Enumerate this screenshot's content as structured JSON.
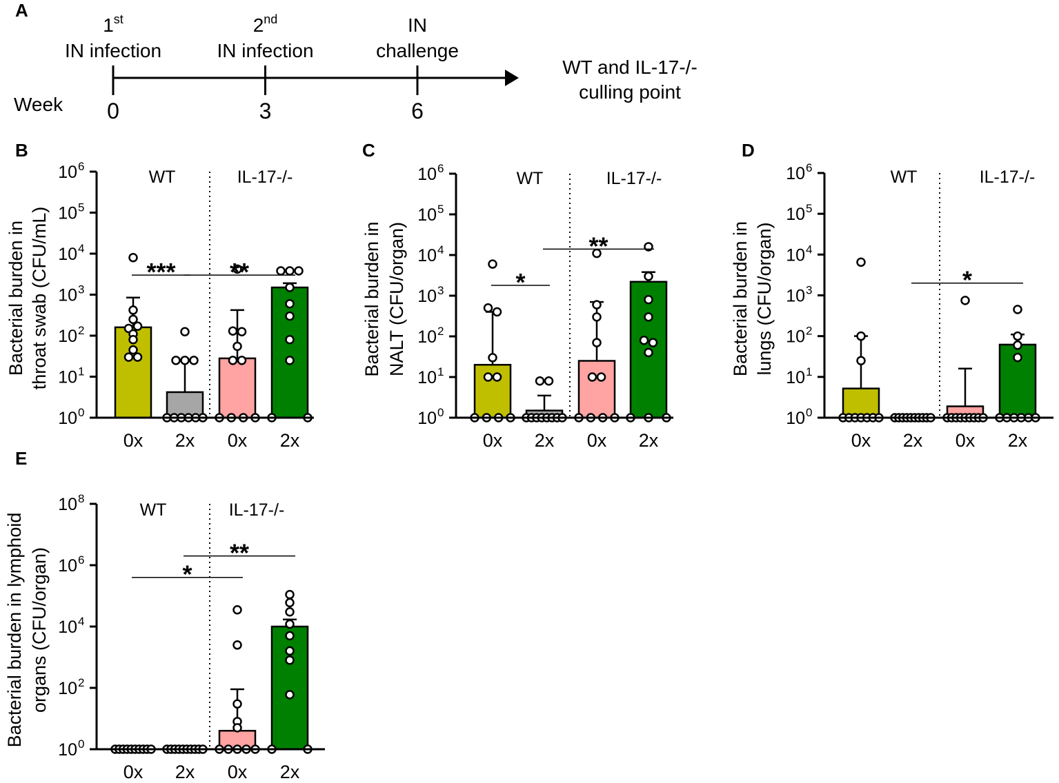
{
  "colors": {
    "wt_0x": "#bfbf00",
    "wt_2x": "#a6a6a6",
    "ko_0x": "#ffa3a3",
    "ko_2x": "#008000",
    "axis": "#000000"
  },
  "timeline": {
    "panel_label": "A",
    "week_label": "Week",
    "events": [
      {
        "week": 0,
        "tick": "0",
        "line1_main": "1",
        "line1_sup": "st",
        "line2": "IN infection"
      },
      {
        "week": 3,
        "tick": "3",
        "line1_main": "2",
        "line1_sup": "nd",
        "line2": "IN infection"
      },
      {
        "week": 6,
        "tick": "6",
        "line1_main": "IN",
        "line1_sup": "",
        "line2": "challenge"
      }
    ],
    "end_label_line1": "WT and IL-17-/-",
    "end_label_line2": "culling point"
  },
  "chart_data": [
    {
      "panel": "B",
      "type": "bar",
      "yscale": "log10",
      "ylim": [
        1,
        1000000
      ],
      "yticks": [
        {
          "base": "10",
          "exp": "0"
        },
        {
          "base": "10",
          "exp": "1"
        },
        {
          "base": "10",
          "exp": "2"
        },
        {
          "base": "10",
          "exp": "3"
        },
        {
          "base": "10",
          "exp": "4"
        },
        {
          "base": "10",
          "exp": "5"
        },
        {
          "base": "10",
          "exp": "6"
        }
      ],
      "ylabel_line1": "Bacterial burden in",
      "ylabel_line2": "throat swab (CFU/mL)",
      "categories": [
        "0x",
        "2x",
        "0x",
        "2x"
      ],
      "groups": [
        "WT",
        "IL-17-/-"
      ],
      "bars": [
        {
          "group": "WT",
          "category": "0x",
          "mean": 160,
          "error": 850,
          "points": [
            8000,
            420,
            250,
            150,
            170,
            110,
            80,
            45,
            30,
            30
          ]
        },
        {
          "group": "WT",
          "category": "2x",
          "mean": 4.2,
          "error": 25,
          "points": [
            125,
            25,
            25,
            25,
            1,
            1,
            1,
            1,
            1,
            1
          ]
        },
        {
          "group": "IL-17-/-",
          "category": "0x",
          "mean": 28,
          "error": 420,
          "points": [
            4200,
            130,
            125,
            55,
            25,
            25,
            1,
            1,
            1,
            1
          ]
        },
        {
          "group": "IL-17-/-",
          "category": "2x",
          "mean": 1500,
          "error": 1900,
          "points": [
            3800,
            3800,
            3800,
            1500,
            600,
            300,
            80,
            25,
            1,
            1
          ]
        }
      ],
      "significance": [
        {
          "label": "***",
          "from": 0,
          "to": 1,
          "level": 3000
        },
        {
          "label": "**",
          "from": 1,
          "to": 3,
          "level": 3000
        }
      ]
    },
    {
      "panel": "C",
      "type": "bar",
      "yscale": "log10",
      "ylim": [
        1,
        1000000
      ],
      "yticks": [
        {
          "base": "10",
          "exp": "0"
        },
        {
          "base": "10",
          "exp": "1"
        },
        {
          "base": "10",
          "exp": "2"
        },
        {
          "base": "10",
          "exp": "3"
        },
        {
          "base": "10",
          "exp": "4"
        },
        {
          "base": "10",
          "exp": "5"
        },
        {
          "base": "10",
          "exp": "6"
        }
      ],
      "ylabel_line1": "Bacterial burden in",
      "ylabel_line2": "NALT (CFU/organ)",
      "categories": [
        "0x",
        "2x",
        "0x",
        "2x"
      ],
      "groups": [
        "WT",
        "IL-17-/-"
      ],
      "bars": [
        {
          "group": "WT",
          "category": "0x",
          "mean": 20,
          "error": 400,
          "points": [
            6000,
            500,
            400,
            30,
            10,
            10,
            1,
            1,
            1,
            1
          ]
        },
        {
          "group": "WT",
          "category": "2x",
          "mean": 1.5,
          "error": 3.5,
          "points": [
            8,
            8,
            1,
            1,
            1,
            1,
            1,
            1,
            1,
            1
          ]
        },
        {
          "group": "IL-17-/-",
          "category": "0x",
          "mean": 25,
          "error": 700,
          "points": [
            11000,
            600,
            300,
            70,
            10,
            10,
            1,
            1,
            1,
            1
          ]
        },
        {
          "group": "IL-17-/-",
          "category": "2x",
          "mean": 2200,
          "error": 3800,
          "points": [
            16000,
            3000,
            800,
            300,
            80,
            70,
            40,
            1,
            1,
            1
          ]
        }
      ],
      "significance": [
        {
          "label": "*",
          "from": 0,
          "to": 1,
          "level": 1800
        },
        {
          "label": "**",
          "from": 1,
          "to": 3,
          "level": 14000
        }
      ]
    },
    {
      "panel": "D",
      "type": "bar",
      "yscale": "log10",
      "ylim": [
        1,
        1000000
      ],
      "yticks": [
        {
          "base": "10",
          "exp": "0"
        },
        {
          "base": "10",
          "exp": "1"
        },
        {
          "base": "10",
          "exp": "2"
        },
        {
          "base": "10",
          "exp": "3"
        },
        {
          "base": "10",
          "exp": "4"
        },
        {
          "base": "10",
          "exp": "5"
        },
        {
          "base": "10",
          "exp": "6"
        }
      ],
      "ylabel_line1": "Bacterial burden in",
      "ylabel_line2": "lungs (CFU/organ)",
      "categories": [
        "0x",
        "2x",
        "0x",
        "2x"
      ],
      "groups": [
        "WT",
        "IL-17-/-"
      ],
      "bars": [
        {
          "group": "WT",
          "category": "0x",
          "mean": 5.2,
          "error": 100,
          "points": [
            6500,
            100,
            25,
            1,
            1,
            1,
            1,
            1,
            1,
            1
          ]
        },
        {
          "group": "WT",
          "category": "2x",
          "mean": 1,
          "error": 1,
          "points": [
            1,
            1,
            1,
            1,
            1,
            1,
            1,
            1,
            1,
            1
          ]
        },
        {
          "group": "IL-17-/-",
          "category": "0x",
          "mean": 1.9,
          "error": 16,
          "points": [
            750,
            1,
            1,
            1,
            1,
            1,
            1,
            1,
            1,
            1
          ]
        },
        {
          "group": "IL-17-/-",
          "category": "2x",
          "mean": 62,
          "error": 110,
          "points": [
            450,
            100,
            60,
            30,
            1,
            1,
            1,
            1,
            1,
            1
          ]
        }
      ],
      "significance": [
        {
          "label": "*",
          "from": 1,
          "to": 3,
          "level": 2000
        }
      ]
    },
    {
      "panel": "E",
      "type": "bar",
      "yscale": "log10",
      "ylim": [
        1,
        100000000
      ],
      "yticks": [
        {
          "base": "10",
          "exp": "0"
        },
        {
          "base": "10",
          "exp": "2"
        },
        {
          "base": "10",
          "exp": "4"
        },
        {
          "base": "10",
          "exp": "6"
        },
        {
          "base": "10",
          "exp": "8"
        }
      ],
      "ylabel_line1": "Bacterial burden in lymphoid",
      "ylabel_line2": "organs (CFU/organ)",
      "categories": [
        "0x",
        "2x",
        "0x",
        "2x"
      ],
      "groups": [
        "WT",
        "IL-17-/-"
      ],
      "bars": [
        {
          "group": "WT",
          "category": "0x",
          "mean": 1,
          "error": 1,
          "points": [
            1,
            1,
            1,
            1,
            1,
            1,
            1,
            1,
            1,
            1
          ]
        },
        {
          "group": "WT",
          "category": "2x",
          "mean": 1,
          "error": 1,
          "points": [
            1,
            1,
            1,
            1,
            1,
            1,
            1,
            1,
            1,
            1
          ]
        },
        {
          "group": "IL-17-/-",
          "category": "0x",
          "mean": 4,
          "error": 90,
          "points": [
            35000,
            2500,
            30,
            8,
            5,
            1,
            1,
            1,
            1,
            1
          ]
        },
        {
          "group": "IL-17-/-",
          "category": "2x",
          "mean": 10000,
          "error": 17000,
          "points": [
            110000,
            60000,
            30000,
            12000,
            5000,
            1600,
            800,
            60,
            1,
            1
          ]
        }
      ],
      "significance": [
        {
          "label": "*",
          "from": 0,
          "to": 2,
          "level": 400000
        },
        {
          "label": "**",
          "from": 1,
          "to": 3,
          "level": 2000000
        }
      ]
    }
  ]
}
